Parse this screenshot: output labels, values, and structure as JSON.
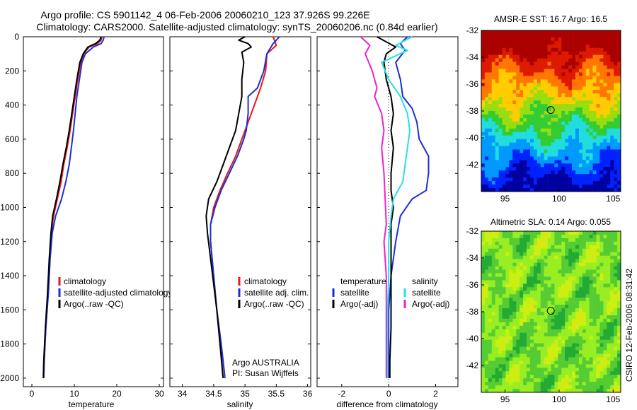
{
  "header": {
    "line1": "Argo profile: CS 5901142_4 06-Feb-2006 20060210_123 37.926S 99.226E",
    "line2": "Climatology: CARS2000. Satellite-adjusted climatology: synTS_20060206.nc (0.84d earlier)"
  },
  "colors": {
    "climatology": "#e8171a",
    "satellite": "#1a2fd6",
    "argo": "#000000",
    "satellite_sal": "#29e0e0",
    "argo_sal_diff": "#ee22cc"
  },
  "chart_data": [
    {
      "type": "line",
      "id": "temperature",
      "xlabel": "temperature",
      "ylabel": "",
      "xlim": [
        -2,
        31
      ],
      "ylim": [
        2050,
        0
      ],
      "x_ticks": [
        0,
        10,
        20,
        30
      ],
      "y_ticks": [
        0,
        200,
        400,
        600,
        800,
        1000,
        1200,
        1400,
        1600,
        1800,
        2000
      ],
      "legend": [
        "climatology",
        "satellite-adjusted climatology",
        "Argo(..raw -QC)"
      ],
      "series": [
        {
          "name": "climatology",
          "color_key": "climatology",
          "points": [
            [
              16.5,
              0
            ],
            [
              16.3,
              20
            ],
            [
              15.5,
              40
            ],
            [
              13.5,
              60
            ],
            [
              12.2,
              100
            ],
            [
              11.5,
              150
            ],
            [
              10.8,
              250
            ],
            [
              10.2,
              350
            ],
            [
              9.6,
              450
            ],
            [
              9.0,
              550
            ],
            [
              8.3,
              650
            ],
            [
              7.5,
              750
            ],
            [
              6.9,
              850
            ],
            [
              6.0,
              950
            ],
            [
              5.1,
              1050
            ],
            [
              4.6,
              1150
            ],
            [
              4.2,
              1300
            ],
            [
              3.8,
              1500
            ],
            [
              3.3,
              1700
            ],
            [
              2.9,
              1900
            ],
            [
              2.8,
              2000
            ]
          ]
        },
        {
          "name": "satellite-adjusted climatology",
          "color_key": "satellite",
          "points": [
            [
              17.0,
              0
            ],
            [
              16.8,
              20
            ],
            [
              16.3,
              40
            ],
            [
              14.5,
              60
            ],
            [
              12.6,
              100
            ],
            [
              11.8,
              150
            ],
            [
              11.2,
              250
            ],
            [
              10.6,
              350
            ],
            [
              10.2,
              450
            ],
            [
              9.8,
              550
            ],
            [
              9.3,
              650
            ],
            [
              8.8,
              750
            ],
            [
              8.0,
              850
            ],
            [
              7.0,
              950
            ],
            [
              5.6,
              1050
            ],
            [
              4.8,
              1150
            ],
            [
              4.3,
              1300
            ],
            [
              3.9,
              1500
            ],
            [
              3.3,
              1700
            ],
            [
              2.9,
              1900
            ],
            [
              2.8,
              2000
            ]
          ]
        },
        {
          "name": "Argo(..raw -QC)",
          "color_key": "argo",
          "points": [
            [
              16.3,
              0
            ],
            [
              16.0,
              20
            ],
            [
              15.0,
              40
            ],
            [
              13.2,
              60
            ],
            [
              12.1,
              100
            ],
            [
              11.3,
              150
            ],
            [
              10.6,
              250
            ],
            [
              10.0,
              350
            ],
            [
              9.4,
              450
            ],
            [
              8.8,
              550
            ],
            [
              8.1,
              650
            ],
            [
              7.3,
              750
            ],
            [
              6.6,
              850
            ],
            [
              5.8,
              950
            ],
            [
              4.9,
              1050
            ],
            [
              4.5,
              1150
            ],
            [
              4.1,
              1300
            ],
            [
              3.7,
              1500
            ],
            [
              3.2,
              1700
            ],
            [
              2.8,
              1900
            ],
            [
              2.7,
              2000
            ]
          ]
        }
      ]
    },
    {
      "type": "line",
      "id": "salinity",
      "xlabel": "salinity",
      "ylabel": "",
      "xlim": [
        33.8,
        36.05
      ],
      "ylim": [
        2050,
        0
      ],
      "x_ticks": [
        34,
        34.5,
        35,
        35.5,
        36
      ],
      "x_tick_labels": [
        "34",
        "34.5",
        "35",
        "35.5",
        "36"
      ],
      "legend": [
        "climatology",
        "satellite adj. clim.",
        "Argo(..raw -QC)"
      ],
      "annotation": [
        "Argo AUSTRALIA",
        "PI: Susan Wijffels"
      ],
      "series": [
        {
          "name": "climatology",
          "color_key": "climatology",
          "points": [
            [
              35.45,
              0
            ],
            [
              35.5,
              50
            ],
            [
              35.35,
              100
            ],
            [
              35.33,
              200
            ],
            [
              35.25,
              300
            ],
            [
              35.15,
              400
            ],
            [
              35.05,
              500
            ],
            [
              34.95,
              600
            ],
            [
              34.85,
              700
            ],
            [
              34.72,
              800
            ],
            [
              34.6,
              900
            ],
            [
              34.5,
              1000
            ],
            [
              34.45,
              1100
            ],
            [
              34.45,
              1200
            ],
            [
              34.5,
              1400
            ],
            [
              34.55,
              1600
            ],
            [
              34.62,
              1800
            ],
            [
              34.68,
              2000
            ]
          ]
        },
        {
          "name": "satellite adj. clim.",
          "color_key": "satellite",
          "points": [
            [
              35.55,
              0
            ],
            [
              35.45,
              40
            ],
            [
              35.35,
              100
            ],
            [
              35.3,
              200
            ],
            [
              35.2,
              300
            ],
            [
              35.05,
              350
            ],
            [
              35.05,
              450
            ],
            [
              35.02,
              550
            ],
            [
              34.98,
              600
            ],
            [
              34.88,
              700
            ],
            [
              34.75,
              800
            ],
            [
              34.62,
              900
            ],
            [
              34.52,
              1000
            ],
            [
              34.45,
              1100
            ],
            [
              34.45,
              1200
            ],
            [
              34.5,
              1400
            ],
            [
              34.55,
              1600
            ],
            [
              34.62,
              1800
            ],
            [
              34.68,
              2000
            ]
          ]
        },
        {
          "name": "Argo(..raw -QC)",
          "color_key": "argo",
          "points": [
            [
              35.0,
              0
            ],
            [
              34.9,
              20
            ],
            [
              35.05,
              40
            ],
            [
              35.1,
              60
            ],
            [
              34.95,
              90
            ],
            [
              34.98,
              150
            ],
            [
              34.95,
              250
            ],
            [
              34.95,
              350
            ],
            [
              34.9,
              450
            ],
            [
              34.85,
              550
            ],
            [
              34.75,
              650
            ],
            [
              34.65,
              750
            ],
            [
              34.55,
              850
            ],
            [
              34.42,
              950
            ],
            [
              34.38,
              1050
            ],
            [
              34.4,
              1150
            ],
            [
              34.45,
              1300
            ],
            [
              34.5,
              1450
            ],
            [
              34.55,
              1600
            ],
            [
              34.6,
              1800
            ],
            [
              34.65,
              2000
            ]
          ]
        }
      ]
    },
    {
      "type": "line",
      "id": "difference",
      "xlabel": "difference from climatology",
      "ylabel": "",
      "xlim": [
        -3.05,
        2.95
      ],
      "ylim": [
        2050,
        0
      ],
      "x_ticks": [
        -2,
        0,
        2
      ],
      "legend_left_title": "temperature",
      "legend_left": [
        "satellite",
        "Argo(-adj)"
      ],
      "legend_right_title": "salinity",
      "legend_right": [
        "satellite",
        "Argo(-adj)"
      ],
      "series": [
        {
          "name": "temperature satellite",
          "color_key": "satellite",
          "points": [
            [
              0.8,
              0
            ],
            [
              0.5,
              40
            ],
            [
              0.7,
              80
            ],
            [
              0.3,
              150
            ],
            [
              0.5,
              250
            ],
            [
              0.6,
              350
            ],
            [
              1.0,
              420
            ],
            [
              1.2,
              500
            ],
            [
              1.3,
              600
            ],
            [
              1.7,
              700
            ],
            [
              1.7,
              800
            ],
            [
              1.6,
              900
            ],
            [
              1.0,
              950
            ],
            [
              0.5,
              1050
            ],
            [
              0.3,
              1200
            ],
            [
              0.1,
              1400
            ],
            [
              0,
              1600
            ],
            [
              0,
              1800
            ],
            [
              0,
              2000
            ]
          ]
        },
        {
          "name": "temperature Argo(-adj)",
          "color_key": "argo",
          "points": [
            [
              -0.5,
              0
            ],
            [
              -0.1,
              30
            ],
            [
              0.3,
              60
            ],
            [
              -0.1,
              100
            ],
            [
              -0.2,
              150
            ],
            [
              -0.1,
              250
            ],
            [
              0.1,
              350
            ],
            [
              0.2,
              450
            ],
            [
              0.1,
              550
            ],
            [
              0.2,
              650
            ],
            [
              0.1,
              800
            ],
            [
              0.1,
              900
            ],
            [
              0.2,
              1000
            ],
            [
              0.1,
              1100
            ],
            [
              0.1,
              1300
            ],
            [
              0.1,
              1500
            ],
            [
              0.1,
              1700
            ],
            [
              0.05,
              1900
            ],
            [
              0.05,
              2000
            ]
          ]
        },
        {
          "name": "salinity satellite",
          "color_key": "satellite_sal",
          "points": [
            [
              1.0,
              0
            ],
            [
              0.3,
              50
            ],
            [
              0.8,
              80
            ],
            [
              -0.3,
              150
            ],
            [
              0.0,
              250
            ],
            [
              0.5,
              350
            ],
            [
              0.8,
              450
            ],
            [
              0.9,
              550
            ],
            [
              0.8,
              650
            ],
            [
              0.7,
              750
            ],
            [
              0.6,
              850
            ],
            [
              0.2,
              950
            ],
            [
              0.1,
              1050
            ],
            [
              0.0,
              1200
            ],
            [
              0.0,
              1400
            ],
            [
              -0.05,
              1600
            ],
            [
              -0.05,
              1800
            ],
            [
              -0.05,
              2000
            ]
          ]
        },
        {
          "name": "salinity Argo(-adj)",
          "color_key": "argo_sal_diff",
          "points": [
            [
              -1.2,
              0
            ],
            [
              -0.8,
              50
            ],
            [
              -1.0,
              100
            ],
            [
              -0.7,
              200
            ],
            [
              -0.5,
              300
            ],
            [
              -0.6,
              350
            ],
            [
              -0.3,
              450
            ],
            [
              -0.2,
              550
            ],
            [
              -0.3,
              650
            ],
            [
              -0.2,
              800
            ],
            [
              -0.15,
              950
            ],
            [
              -0.1,
              1100
            ],
            [
              -0.2,
              1200
            ],
            [
              -0.1,
              1400
            ],
            [
              -0.1,
              1600
            ],
            [
              -0.1,
              1800
            ],
            [
              -0.1,
              2000
            ]
          ]
        }
      ]
    },
    {
      "type": "heatmap",
      "id": "sst",
      "title": "AMSR-E SST: 16.7 Argo: 16.5",
      "xlim": [
        92.8,
        105.7
      ],
      "ylim": [
        -44.0,
        -32.0
      ],
      "x_ticks": [
        95,
        100,
        105
      ],
      "y_ticks": [
        -32,
        -34,
        -36,
        -38,
        -40,
        -42
      ],
      "marker": {
        "lon": 99.226,
        "lat": -37.926
      },
      "colormap": [
        "#0000a0",
        "#0022ff",
        "#0099ff",
        "#22dddd",
        "#33cc33",
        "#99dd11",
        "#ffcc00",
        "#ff7700",
        "#dd1a00",
        "#aa0000"
      ]
    },
    {
      "type": "heatmap",
      "id": "sla",
      "title": "Altimetric SLA: 0.14 Argo: 0.055",
      "xlim": [
        92.8,
        105.7
      ],
      "ylim": [
        -44.0,
        -32.0
      ],
      "x_ticks": [
        95,
        100,
        105
      ],
      "y_ticks": [
        -32,
        -34,
        -36,
        -38,
        -40,
        -42
      ],
      "marker": {
        "lon": 99.226,
        "lat": -37.926
      },
      "side_label": "CSIRO 12-Feb-2006 08:31:42",
      "colormap": [
        "#22aa33",
        "#55cc33",
        "#99ee22",
        "#ccee11",
        "#eedd11",
        "#ffcc22"
      ]
    }
  ]
}
